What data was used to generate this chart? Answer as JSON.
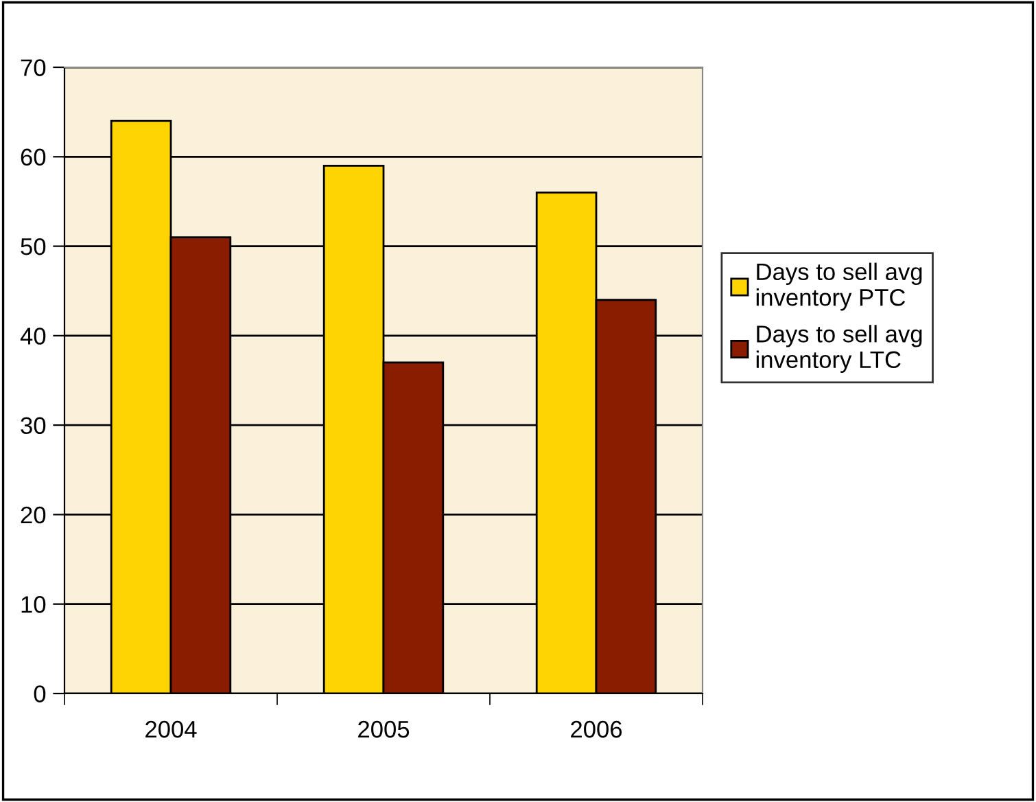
{
  "chart_data": {
    "type": "bar",
    "categories": [
      "2004",
      "2005",
      "2006"
    ],
    "series": [
      {
        "name": "Days to sell avg\ninventory PTC",
        "color": "#ffd400",
        "values": [
          64,
          59,
          56
        ]
      },
      {
        "name": "Days to sell avg\ninventory LTC",
        "color": "#8a1c00",
        "values": [
          51,
          37,
          44
        ]
      }
    ],
    "ylim": [
      0,
      70
    ],
    "yticks": [
      0,
      10,
      20,
      30,
      40,
      50,
      60,
      70
    ],
    "grid": "y",
    "legend": "right"
  }
}
